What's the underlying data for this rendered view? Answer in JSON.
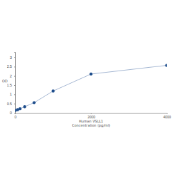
{
  "chart_data": {
    "type": "line",
    "x": [
      0,
      62.5,
      125,
      250,
      500,
      1000,
      2000,
      4000
    ],
    "values": [
      0.13,
      0.17,
      0.22,
      0.33,
      0.55,
      1.18,
      2.1,
      2.57
    ],
    "color": "#1f4e8c",
    "marker": "circle",
    "line_style": "solid",
    "xlabel": "Human VSLL1\nConcentration (pg/ml)",
    "ylabel": "OD",
    "xlim": [
      0,
      4000
    ],
    "xticks": [
      0,
      2000,
      4000
    ],
    "ylim": [
      0,
      3.3
    ],
    "yticks": [
      0,
      0.5,
      1,
      1.5,
      2,
      2.5,
      3
    ],
    "grid": false
  }
}
